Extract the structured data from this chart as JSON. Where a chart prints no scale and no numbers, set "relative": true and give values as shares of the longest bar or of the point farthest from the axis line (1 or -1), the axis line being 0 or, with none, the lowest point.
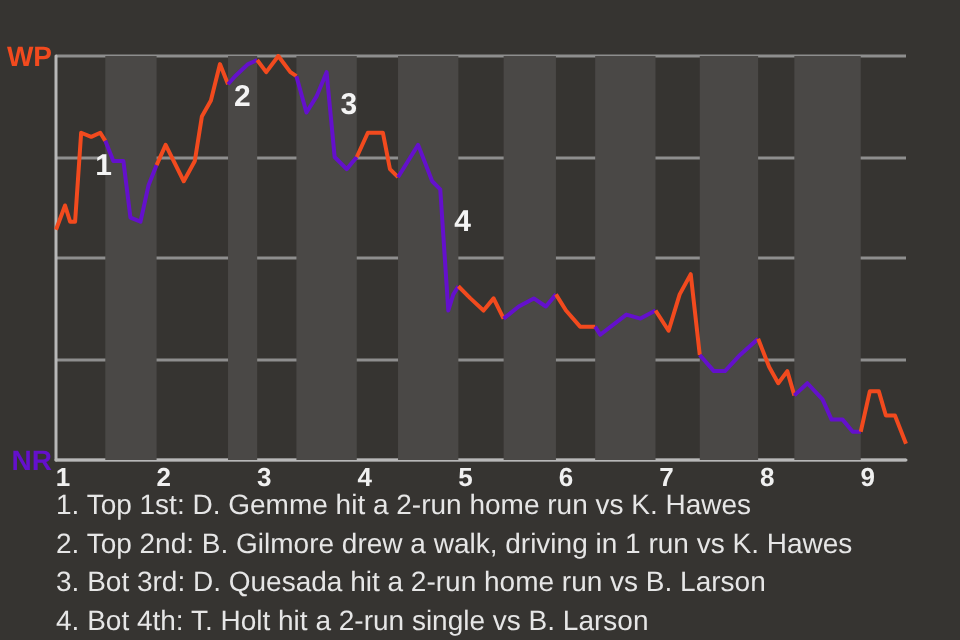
{
  "chart_data": {
    "type": "line",
    "relative": true,
    "series": [
      {
        "color": "#f24a1e",
        "x": [
          0.93,
          1.02,
          1.07,
          1.12,
          1.18,
          1.28,
          1.37,
          1.42
        ],
        "values": [
          0.57,
          0.63,
          0.59,
          0.59,
          0.81,
          0.8,
          0.81,
          0.79
        ]
      },
      {
        "color": "#6410cc",
        "x": [
          1.42,
          1.5,
          1.6,
          1.67,
          1.77,
          1.85,
          1.93
        ],
        "values": [
          0.79,
          0.74,
          0.74,
          0.6,
          0.59,
          0.68,
          0.73
        ]
      },
      {
        "color": "#f24a1e",
        "x": [
          1.93,
          2.02,
          2.2,
          2.31,
          2.38,
          2.47,
          2.56,
          2.64
        ],
        "values": [
          0.73,
          0.78,
          0.69,
          0.74,
          0.85,
          0.89,
          0.98,
          0.93
        ]
      },
      {
        "color": "#6410cc",
        "x": [
          2.64,
          2.71,
          2.84,
          2.93
        ],
        "values": [
          0.93,
          0.95,
          0.98,
          0.99
        ]
      },
      {
        "color": "#f24a1e",
        "x": [
          2.93,
          3.02,
          3.14,
          3.26,
          3.32
        ],
        "values": [
          0.99,
          0.96,
          1,
          0.96,
          0.95
        ]
      },
      {
        "color": "#6410cc",
        "x": [
          3.32,
          3.42,
          3.52,
          3.62,
          3.7,
          3.82,
          3.92
        ],
        "values": [
          0.95,
          0.86,
          0.9,
          0.96,
          0.75,
          0.72,
          0.75
        ]
      },
      {
        "color": "#f24a1e",
        "x": [
          3.92,
          4.03,
          4.18,
          4.25,
          4.33
        ],
        "values": [
          0.75,
          0.81,
          0.81,
          0.72,
          0.7
        ]
      },
      {
        "color": "#6410cc",
        "x": [
          4.33,
          4.43,
          4.53,
          4.67,
          4.75,
          4.83,
          4.88,
          4.93
        ],
        "values": [
          0.7,
          0.74,
          0.78,
          0.69,
          0.67,
          0.37,
          0.41,
          0.43
        ]
      },
      {
        "color": "#f24a1e",
        "x": [
          4.93,
          5.05,
          5.18,
          5.28,
          5.38
        ],
        "values": [
          0.43,
          0.4,
          0.37,
          0.4,
          0.35
        ]
      },
      {
        "color": "#6410cc",
        "x": [
          5.38,
          5.53,
          5.68,
          5.8,
          5.9
        ],
        "values": [
          0.35,
          0.38,
          0.4,
          0.38,
          0.41
        ]
      },
      {
        "color": "#f24a1e",
        "x": [
          5.9,
          6,
          6.14,
          6.29
        ],
        "values": [
          0.41,
          0.37,
          0.33,
          0.33
        ]
      },
      {
        "color": "#6410cc",
        "x": [
          6.29,
          6.34,
          6.6,
          6.74,
          6.89
        ],
        "values": [
          0.33,
          0.31,
          0.36,
          0.35,
          0.37
        ]
      },
      {
        "color": "#f24a1e",
        "x": [
          6.89,
          7.02,
          7.13,
          7.24,
          7.33
        ],
        "values": [
          0.37,
          0.32,
          0.41,
          0.46,
          0.26
        ]
      },
      {
        "color": "#6410cc",
        "x": [
          7.33,
          7.47,
          7.58,
          7.73,
          7.91
        ],
        "values": [
          0.26,
          0.22,
          0.22,
          0.26,
          0.3
        ]
      },
      {
        "color": "#f24a1e",
        "x": [
          7.91,
          8.02,
          8.11,
          8.2,
          8.27
        ],
        "values": [
          0.3,
          0.23,
          0.19,
          0.22,
          0.16
        ]
      },
      {
        "color": "#6410cc",
        "x": [
          8.27,
          8.4,
          8.55,
          8.64,
          8.75,
          8.85,
          8.93
        ],
        "values": [
          0.16,
          0.19,
          0.15,
          0.1,
          0.1,
          0.07,
          0.07
        ]
      },
      {
        "color": "#f24a1e",
        "x": [
          8.93,
          9.02,
          9.11,
          9.18,
          9.27,
          9.38
        ],
        "values": [
          0.07,
          0.17,
          0.17,
          0.11,
          0.11,
          0.04
        ]
      }
    ],
    "xlim": [
      0.93,
      9.38
    ],
    "xticks": [
      1,
      2,
      3,
      4,
      5,
      6,
      7,
      8,
      9
    ],
    "grid": "y",
    "bands": [
      {
        "axis": "x",
        "from": 1.42,
        "to": 1.93,
        "color": "#4a4846"
      },
      {
        "axis": "x",
        "from": 2.64,
        "to": 2.93,
        "color": "#4a4846"
      },
      {
        "axis": "x",
        "from": 3.32,
        "to": 3.92,
        "color": "#4a4846"
      },
      {
        "axis": "x",
        "from": 4.33,
        "to": 4.93,
        "color": "#4a4846"
      },
      {
        "axis": "x",
        "from": 5.38,
        "to": 5.9,
        "color": "#4a4846"
      },
      {
        "axis": "x",
        "from": 6.29,
        "to": 6.89,
        "color": "#4a4846"
      },
      {
        "axis": "x",
        "from": 7.33,
        "to": 7.91,
        "color": "#4a4846"
      },
      {
        "axis": "x",
        "from": 8.27,
        "to": 8.93,
        "color": "#4a4846"
      }
    ],
    "annotations": [
      {
        "text": "1",
        "x": 1.18,
        "y": 0.81
      },
      {
        "text": "2",
        "x": 2.56,
        "y": 0.98
      },
      {
        "text": "3",
        "x": 3.62,
        "y": 0.96
      },
      {
        "text": "4",
        "x": 4.75,
        "y": 0.67
      },
      "WP",
      "NR",
      "1. Top 1st: D. Gemme hit a 2-run home run vs K. Hawes",
      "2. Top 2nd: B. Gilmore drew a walk, driving in 1 run vs K. Hawes",
      "3. Bot 3rd: D. Quesada hit a 2-run home run vs B. Larson",
      "4. Bot 4th: T. Holt hit a 2-run single vs B. Larson"
    ]
  }
}
